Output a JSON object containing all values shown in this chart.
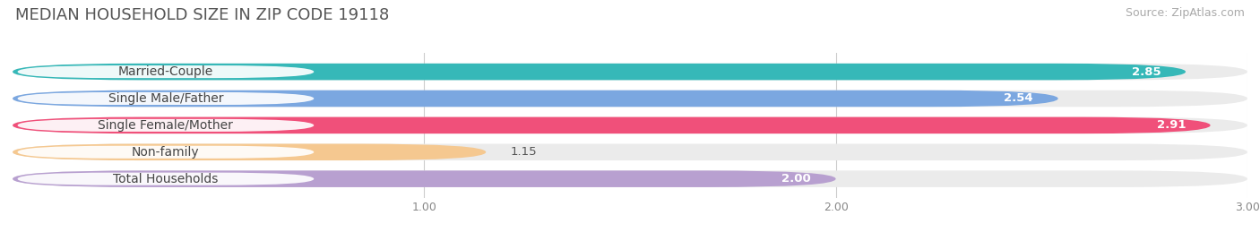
{
  "title": "MEDIAN HOUSEHOLD SIZE IN ZIP CODE 19118",
  "source": "Source: ZipAtlas.com",
  "categories": [
    "Married-Couple",
    "Single Male/Father",
    "Single Female/Mother",
    "Non-family",
    "Total Households"
  ],
  "values": [
    2.85,
    2.54,
    2.91,
    1.15,
    2.0
  ],
  "bar_colors": [
    "#36b8b8",
    "#7ba7e0",
    "#f0507a",
    "#f5c890",
    "#b8a0d0"
  ],
  "xlim_max": 3.0,
  "xticks": [
    1.0,
    2.0,
    3.0
  ],
  "background_color": "#ffffff",
  "bar_bg_color": "#ebebeb",
  "title_fontsize": 13,
  "source_fontsize": 9,
  "label_fontsize": 10,
  "value_fontsize": 9.5,
  "bar_height": 0.62,
  "bar_gap": 0.38
}
